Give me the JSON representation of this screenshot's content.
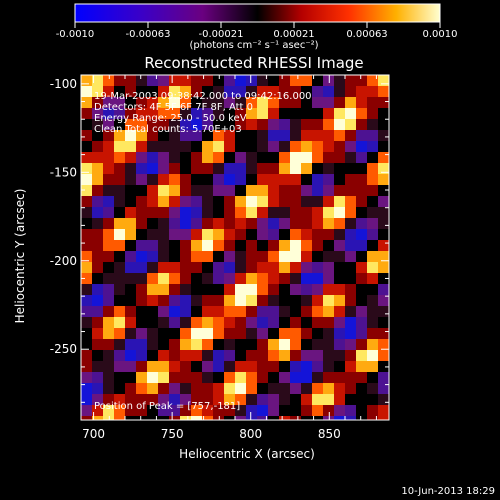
{
  "colorbar": {
    "tick_labels": [
      "-0.0010",
      "-0.00063",
      "-0.00021",
      "0.00021",
      "0.00063",
      "0.0010"
    ],
    "unit_label": "(photons cm⁻² s⁻¹ asec⁻²)",
    "range": [
      -0.001,
      0.001
    ]
  },
  "plot": {
    "title": "Reconstructed RHESSI Image",
    "xlabel": "Heliocentric X (arcsec)",
    "ylabel": "Heliocentric Y (arcsec)",
    "x_ticks": [
      "700",
      "750",
      "800",
      "850"
    ],
    "y_ticks": [
      "-100",
      "-150",
      "-200",
      "-250"
    ],
    "xlim": [
      692,
      888
    ],
    "ylim": [
      -290,
      -95
    ]
  },
  "annotations": {
    "time_range": "19-Mar-2003 09:38:42.000 to 09:42:16.000",
    "detectors": "Detectors: 4F 5F 6F 7F 8F, Att 0",
    "energy": "Energy Range: 25.0 - 50.0 keV",
    "clean": "Clean     Total counts: 5.70E+03",
    "peak": "Position of Peak = [757,-181]"
  },
  "footer": {
    "date": "10-Jun-2013 18:29"
  }
}
